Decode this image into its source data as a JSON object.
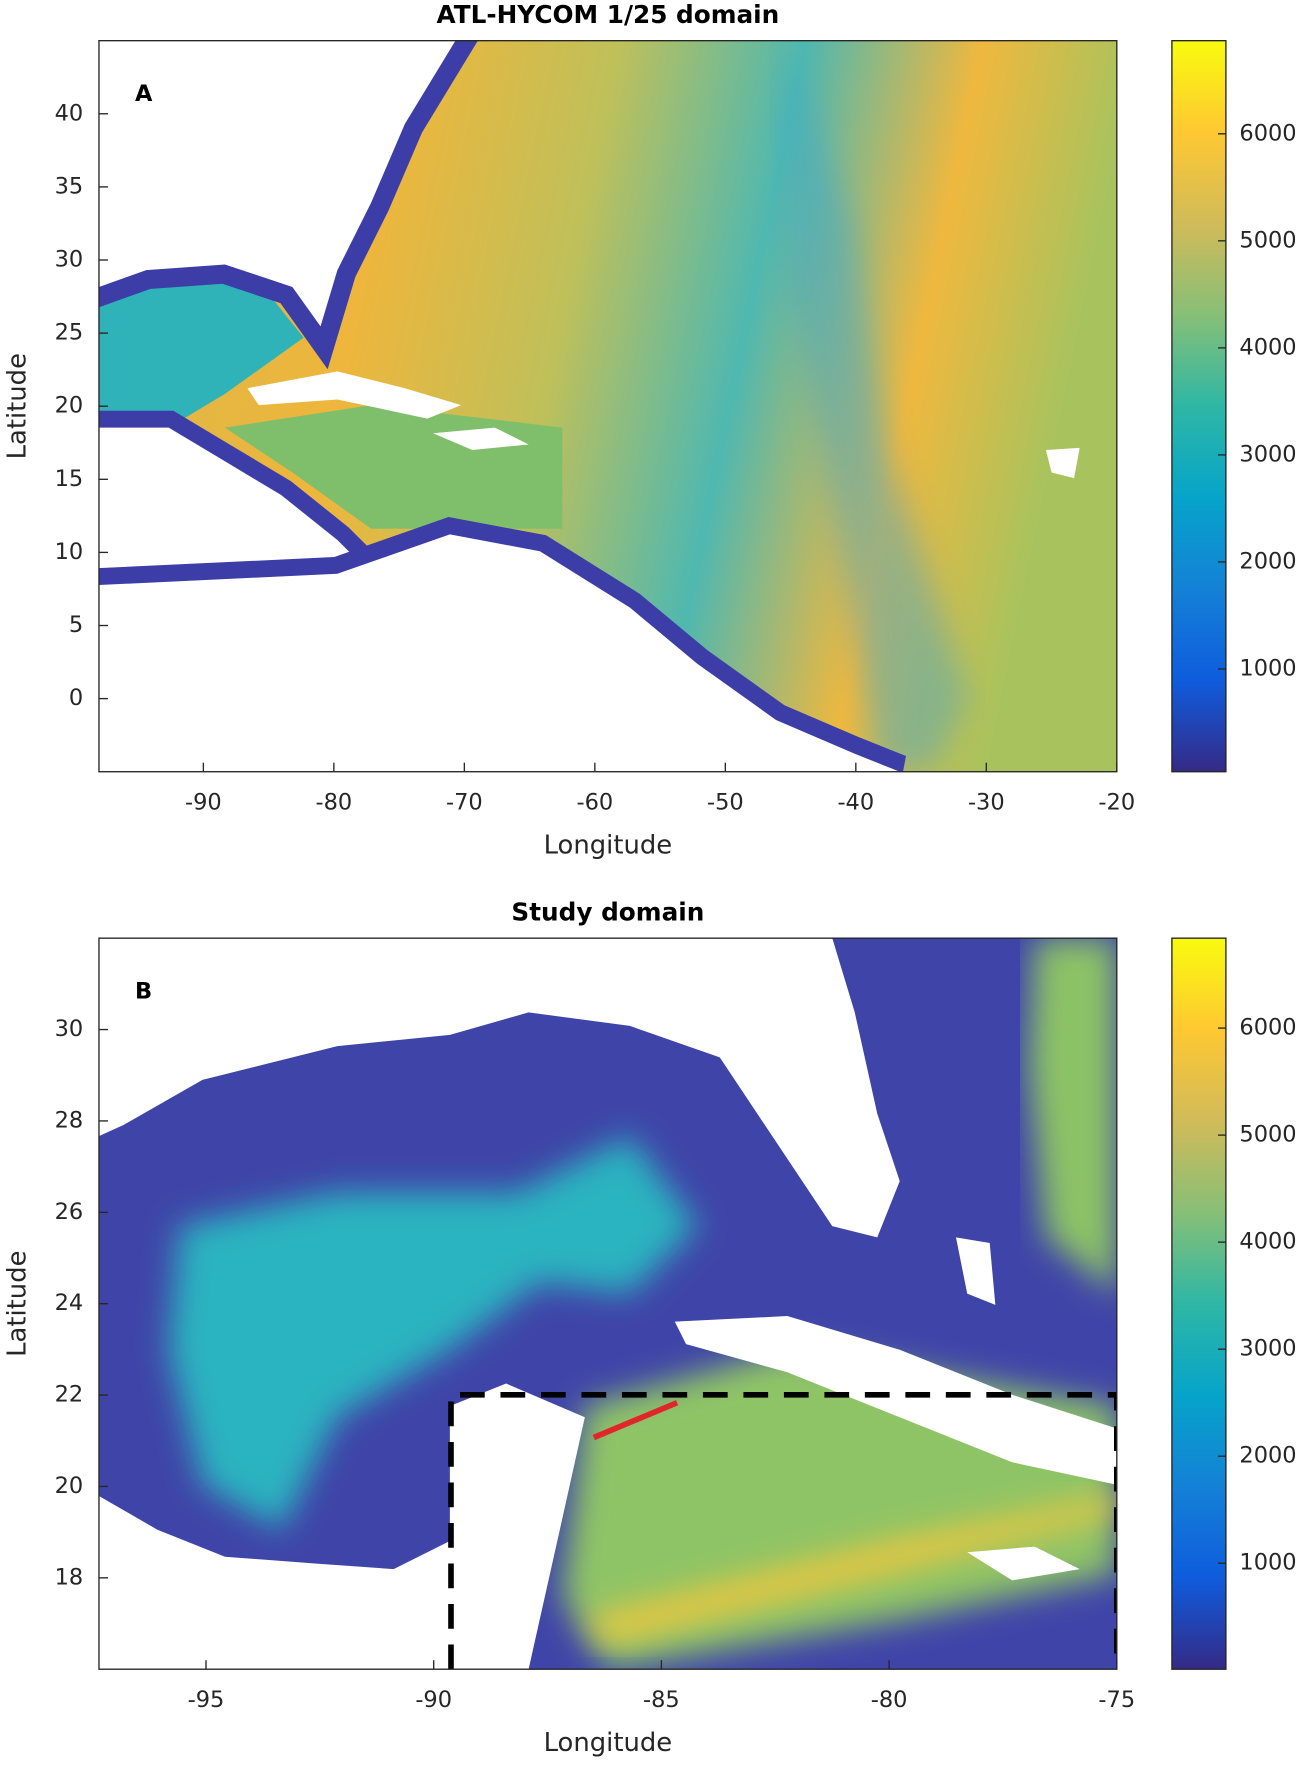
{
  "chart_data": [
    {
      "type": "heatmap",
      "title": "ATL-HYCOM 1/25 domain",
      "annotation": "A",
      "x_label": "Longitude",
      "y_label": "Latitude",
      "xlim": [
        -98,
        -20
      ],
      "xticks": [
        -90,
        -80,
        -70,
        -60,
        -50,
        -40,
        -30,
        -20
      ],
      "ylim": [
        -5,
        45
      ],
      "yticks": [
        0,
        5,
        10,
        15,
        20,
        25,
        30,
        35,
        40
      ],
      "colorbar": {
        "lim": [
          40,
          6870
        ],
        "ticks": [
          1000,
          2000,
          3000,
          4000,
          5000,
          6000
        ]
      },
      "colormap": [
        "#352a87",
        "#0f5cdd",
        "#1481d6",
        "#06a4ca",
        "#2eb7a4",
        "#87bf77",
        "#d1bb59",
        "#fec832",
        "#f9fb0e"
      ]
    },
    {
      "type": "heatmap",
      "title": "Study domain",
      "annotation": "B",
      "x_label": "Longitude",
      "y_label": "Latitude",
      "xlim": [
        -97.35,
        -75
      ],
      "xticks": [
        -95,
        -90,
        -85,
        -80,
        -75
      ],
      "ylim": [
        16,
        32
      ],
      "yticks": [
        18,
        20,
        22,
        24,
        26,
        28,
        30
      ],
      "colorbar": {
        "lim": [
          10,
          6840
        ],
        "ticks": [
          1000,
          2000,
          3000,
          4000,
          5000,
          6000
        ]
      },
      "colormap": [
        "#352a87",
        "#0f5cdd",
        "#1481d6",
        "#06a4ca",
        "#2eb7a4",
        "#87bf77",
        "#d1bb59",
        "#fec832",
        "#f9fb0e"
      ]
    }
  ]
}
